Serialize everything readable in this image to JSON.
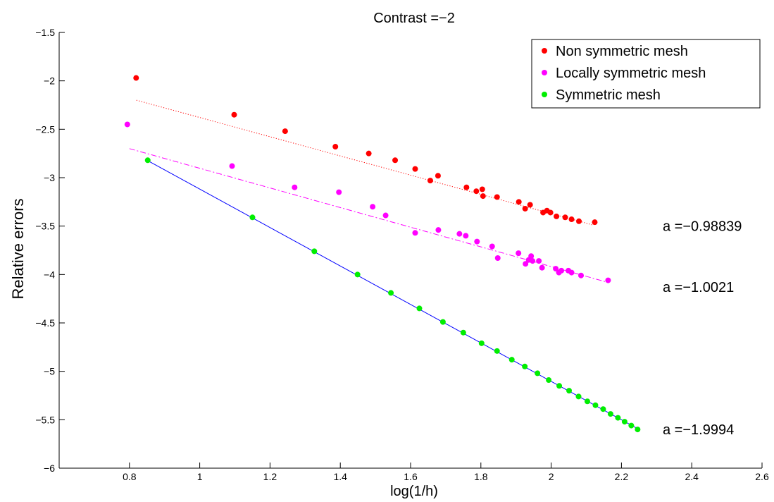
{
  "chart_data": {
    "type": "scatter",
    "title": "Contrast =−2",
    "xlabel": "log(1/h)",
    "ylabel": "Relative errors",
    "xlim": [
      0.6,
      2.6
    ],
    "ylim": [
      -6,
      -1.5
    ],
    "xticks": [
      0.8,
      1,
      1.2,
      1.4,
      1.6,
      1.8,
      2,
      2.2,
      2.4,
      2.6
    ],
    "xtick_labels": [
      "0.8",
      "1",
      "1.2",
      "1.4",
      "1.6",
      "1.8",
      "2",
      "2.2",
      "2.4",
      "2.6"
    ],
    "yticks": [
      -1.5,
      -2,
      -2.5,
      -3,
      -3.5,
      -4,
      -4.5,
      -5,
      -5.5,
      -6
    ],
    "ytick_labels": [
      "−1.5",
      "−2",
      "−2.5",
      "−3",
      "−3.5",
      "−4",
      "−4.5",
      "−5",
      "−5.5",
      "−6"
    ],
    "grid": false,
    "legend_position": "top-right",
    "series": [
      {
        "name": "Non symmetric mesh",
        "color": "#ff0000",
        "line_style": "dotted",
        "fit": {
          "x": [
            0.82,
            2.12
          ],
          "y": [
            -2.2,
            -3.49
          ]
        },
        "slope_label": "a =−0.98839",
        "label_y": -3.5,
        "points": [
          [
            0.819,
            -1.97
          ],
          [
            1.098,
            -2.35
          ],
          [
            1.243,
            -2.52
          ],
          [
            1.386,
            -2.68
          ],
          [
            1.481,
            -2.75
          ],
          [
            1.556,
            -2.82
          ],
          [
            1.613,
            -2.91
          ],
          [
            1.656,
            -3.03
          ],
          [
            1.678,
            -2.98
          ],
          [
            1.759,
            -3.1
          ],
          [
            1.787,
            -3.14
          ],
          [
            1.804,
            -3.12
          ],
          [
            1.806,
            -3.19
          ],
          [
            1.846,
            -3.2
          ],
          [
            1.908,
            -3.25
          ],
          [
            1.926,
            -3.32
          ],
          [
            1.94,
            -3.28
          ],
          [
            1.977,
            -3.36
          ],
          [
            1.988,
            -3.34
          ],
          [
            1.998,
            -3.36
          ],
          [
            2.015,
            -3.4
          ],
          [
            2.04,
            -3.41
          ],
          [
            2.058,
            -3.43
          ],
          [
            2.079,
            -3.45
          ],
          [
            2.124,
            -3.46
          ]
        ]
      },
      {
        "name": "Locally symmetric mesh",
        "color": "#ff00ff",
        "line_style": "dashdot",
        "fit": {
          "x": [
            0.8,
            2.16
          ],
          "y": [
            -2.7,
            -4.08
          ]
        },
        "slope_label": "a =−1.0021",
        "label_y": -4.13,
        "points": [
          [
            0.794,
            -2.45
          ],
          [
            1.092,
            -2.88
          ],
          [
            1.27,
            -3.1
          ],
          [
            1.396,
            -3.15
          ],
          [
            1.492,
            -3.3
          ],
          [
            1.529,
            -3.39
          ],
          [
            1.613,
            -3.57
          ],
          [
            1.679,
            -3.54
          ],
          [
            1.739,
            -3.58
          ],
          [
            1.757,
            -3.6
          ],
          [
            1.789,
            -3.66
          ],
          [
            1.832,
            -3.71
          ],
          [
            1.848,
            -3.83
          ],
          [
            1.907,
            -3.78
          ],
          [
            1.927,
            -3.89
          ],
          [
            1.936,
            -3.85
          ],
          [
            1.943,
            -3.81
          ],
          [
            1.947,
            -3.86
          ],
          [
            1.965,
            -3.86
          ],
          [
            1.974,
            -3.93
          ],
          [
            2.013,
            -3.94
          ],
          [
            2.022,
            -3.98
          ],
          [
            2.029,
            -3.96
          ],
          [
            2.049,
            -3.96
          ],
          [
            2.058,
            -3.98
          ],
          [
            2.085,
            -4.01
          ],
          [
            2.162,
            -4.06
          ]
        ]
      },
      {
        "name": "Symmetric mesh",
        "color": "#00ee00",
        "line_color": "#0000ff",
        "line_style": "solid",
        "fit": {
          "x": [
            0.85,
            2.25
          ],
          "y": [
            -2.82,
            -5.6
          ]
        },
        "slope_label": "a =−1.9994",
        "label_y": -5.6,
        "points": [
          [
            0.852,
            -2.82
          ],
          [
            1.15,
            -3.41
          ],
          [
            1.326,
            -3.76
          ],
          [
            1.449,
            -4.0
          ],
          [
            1.544,
            -4.19
          ],
          [
            1.625,
            -4.35
          ],
          [
            1.692,
            -4.49
          ],
          [
            1.75,
            -4.6
          ],
          [
            1.802,
            -4.71
          ],
          [
            1.846,
            -4.79
          ],
          [
            1.888,
            -4.88
          ],
          [
            1.925,
            -4.95
          ],
          [
            1.961,
            -5.02
          ],
          [
            1.993,
            -5.09
          ],
          [
            2.023,
            -5.15
          ],
          [
            2.051,
            -5.2
          ],
          [
            2.078,
            -5.26
          ],
          [
            2.103,
            -5.31
          ],
          [
            2.126,
            -5.35
          ],
          [
            2.148,
            -5.39
          ],
          [
            2.169,
            -5.44
          ],
          [
            2.19,
            -5.48
          ],
          [
            2.209,
            -5.52
          ],
          [
            2.228,
            -5.56
          ],
          [
            2.246,
            -5.6
          ]
        ]
      }
    ]
  }
}
